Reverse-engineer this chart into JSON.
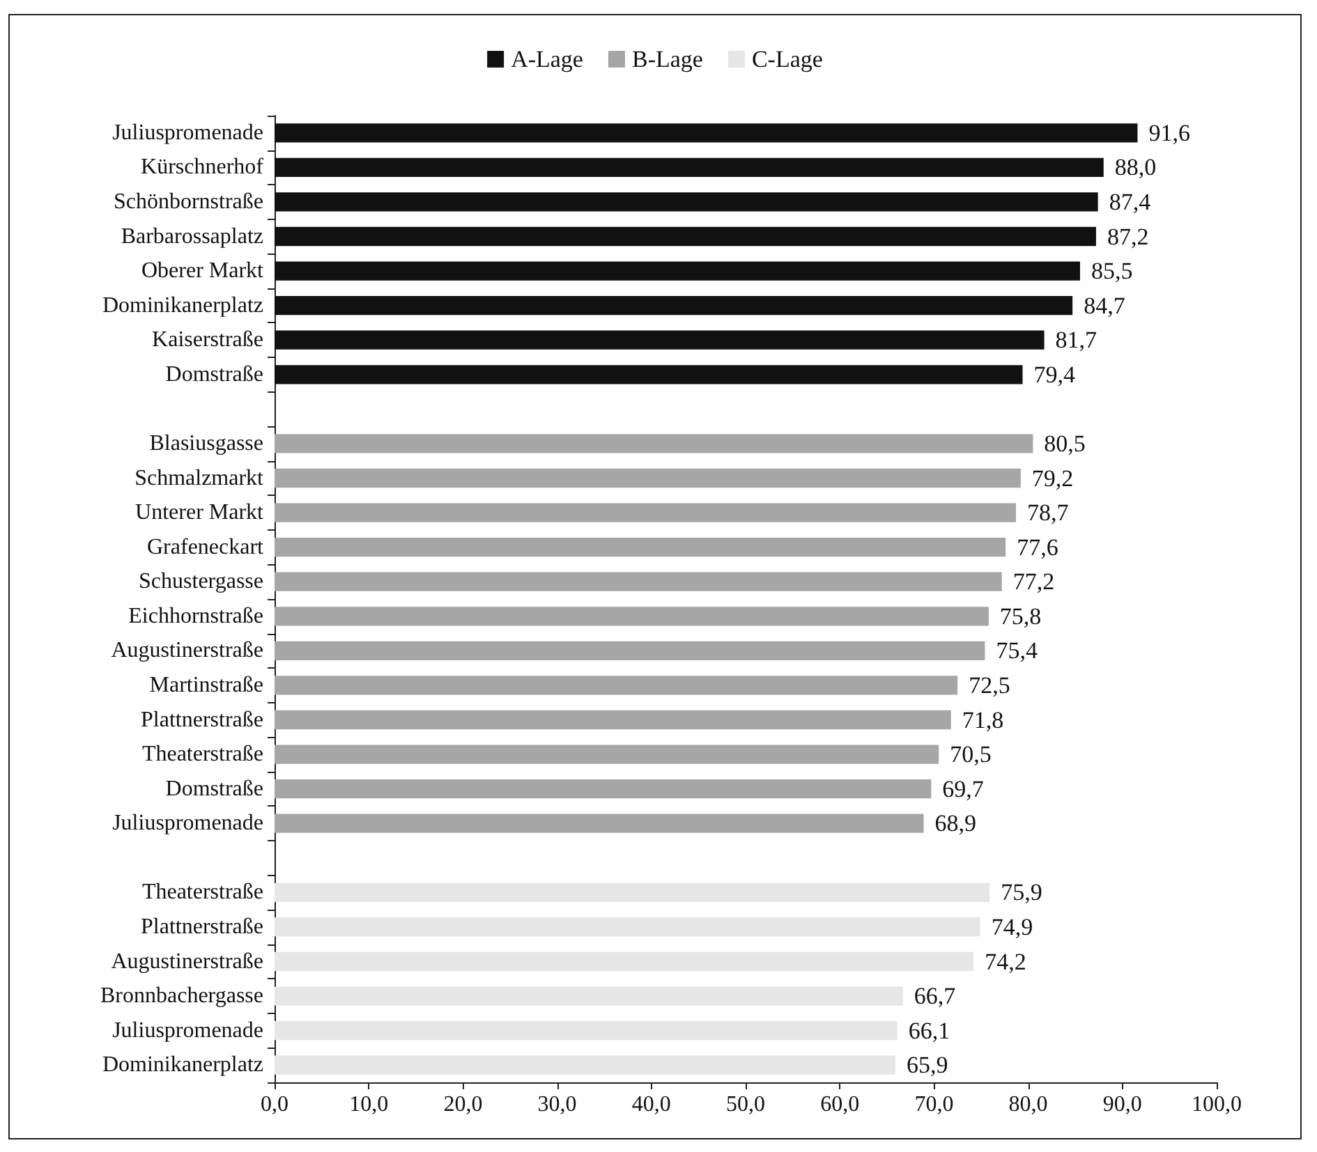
{
  "chart_data": {
    "type": "bar",
    "orientation": "horizontal",
    "legend": "top",
    "grid": false,
    "categories": [
      "Juliuspromenade",
      "Kürschnerhof",
      "Schönbornstraße",
      "Barbarossaplatz",
      "Oberer Markt",
      "Dominikanerplatz",
      "Kaiserstraße",
      "Domstraße",
      null,
      "Blasiusgasse",
      "Schmalzmarkt",
      "Unterer Markt",
      "Grafeneckart",
      "Schustergasse",
      "Eichhornstraße",
      "Augustinerstraße",
      "Martinstraße",
      "Plattnerstraße",
      "Theaterstraße",
      "Domstraße",
      "Juliuspromenade",
      null,
      "Theaterstraße",
      "Plattnerstraße",
      "Augustinerstraße",
      "Bronnbachergasse",
      "Juliuspromenade",
      "Dominikanerplatz"
    ],
    "series": [
      {
        "name": "A-Lage",
        "color": "#111111",
        "values": [
          91.6,
          88.0,
          87.4,
          87.2,
          85.5,
          84.7,
          81.7,
          79.4,
          null,
          null,
          null,
          null,
          null,
          null,
          null,
          null,
          null,
          null,
          null,
          null,
          null,
          null,
          null,
          null,
          null,
          null,
          null,
          null
        ],
        "value_labels": [
          "91,6",
          "88,0",
          "87,4",
          "87,2",
          "85,5",
          "84,7",
          "81,7",
          "79,4",
          null,
          null,
          null,
          null,
          null,
          null,
          null,
          null,
          null,
          null,
          null,
          null,
          null,
          null,
          null,
          null,
          null,
          null,
          null,
          null
        ]
      },
      {
        "name": "B-Lage",
        "color": "#a6a6a6",
        "values": [
          null,
          null,
          null,
          null,
          null,
          null,
          null,
          null,
          null,
          80.5,
          79.2,
          78.7,
          77.6,
          77.2,
          75.8,
          75.4,
          72.5,
          71.8,
          70.5,
          69.7,
          68.9,
          null,
          null,
          null,
          null,
          null,
          null,
          null
        ],
        "value_labels": [
          null,
          null,
          null,
          null,
          null,
          null,
          null,
          null,
          null,
          "80,5",
          "79,2",
          "78,7",
          "77,6",
          "77,2",
          "75,8",
          "75,4",
          "72,5",
          "71,8",
          "70,5",
          "69,7",
          "68,9",
          null,
          null,
          null,
          null,
          null,
          null,
          null
        ]
      },
      {
        "name": "C-Lage",
        "color": "#e6e6e6",
        "values": [
          null,
          null,
          null,
          null,
          null,
          null,
          null,
          null,
          null,
          null,
          null,
          null,
          null,
          null,
          null,
          null,
          null,
          null,
          null,
          null,
          null,
          null,
          75.9,
          74.9,
          74.2,
          66.7,
          66.1,
          65.9
        ],
        "value_labels": [
          null,
          null,
          null,
          null,
          null,
          null,
          null,
          null,
          null,
          null,
          null,
          null,
          null,
          null,
          null,
          null,
          null,
          null,
          null,
          null,
          null,
          null,
          "75,9",
          "74,9",
          "74,2",
          "66,7",
          "66,1",
          "65,9"
        ]
      }
    ],
    "xlim": [
      0,
      100
    ],
    "xticks": [
      {
        "value": 0,
        "label": "0,0"
      },
      {
        "value": 10,
        "label": "10,0"
      },
      {
        "value": 20,
        "label": "20,0"
      },
      {
        "value": 30,
        "label": "30,0"
      },
      {
        "value": 40,
        "label": "40,0"
      },
      {
        "value": 50,
        "label": "50,0"
      },
      {
        "value": 60,
        "label": "60,0"
      },
      {
        "value": 70,
        "label": "70,0"
      },
      {
        "value": 80,
        "label": "80,0"
      },
      {
        "value": 90,
        "label": "90,0"
      },
      {
        "value": 100,
        "label": "100,0"
      }
    ]
  }
}
